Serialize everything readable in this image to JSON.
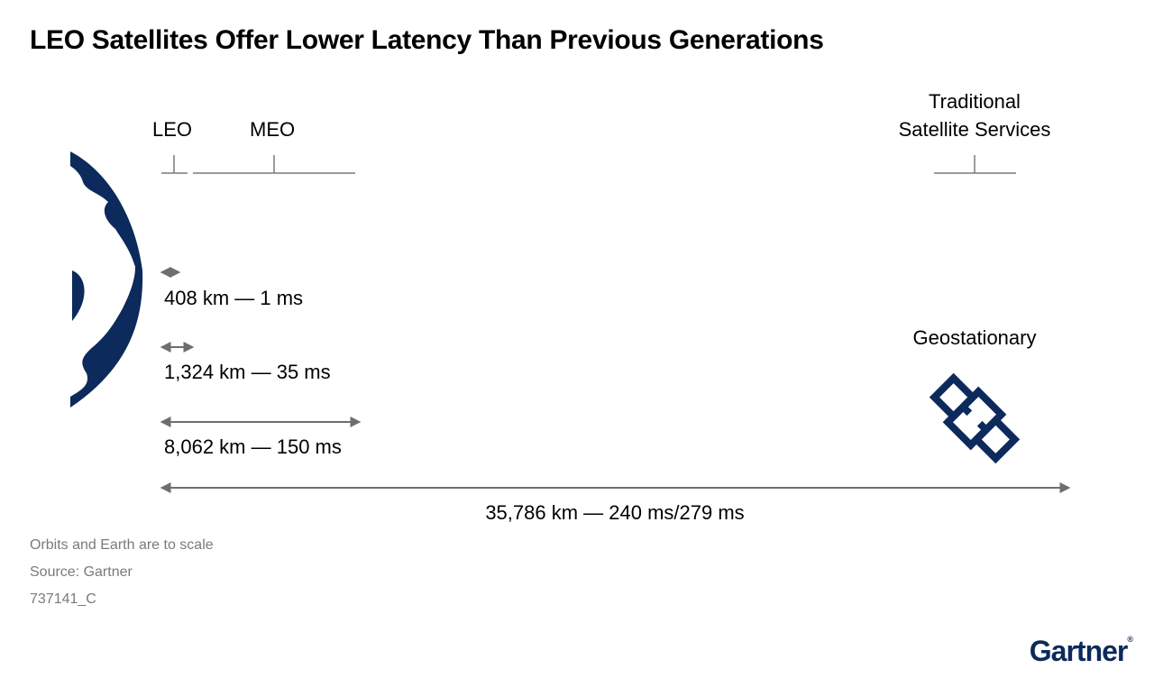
{
  "title": "LEO Satellites Offer Lower Latency Than Previous Generations",
  "orbit_labels": {
    "leo": "LEO",
    "meo": "MEO",
    "traditional_line1": "Traditional",
    "traditional_line2": "Satellite Services"
  },
  "distances": [
    {
      "text": "408 km — 1 ms",
      "km": 408,
      "ms": 1
    },
    {
      "text": "1,324 km — 35 ms",
      "km": 1324,
      "ms": 35
    },
    {
      "text": "8,062 km — 150 ms",
      "km": 8062,
      "ms": 150
    },
    {
      "text": "35,786 km — 240 ms/279 ms",
      "km": 35786,
      "ms": "240/279"
    }
  ],
  "geo_label": "Geostationary",
  "footer": {
    "note": "Orbits and Earth are to scale",
    "source": "Source: Gartner",
    "id": "737141_C"
  },
  "brand": {
    "name": "Gartner",
    "mark": "®"
  },
  "colors": {
    "navy": "#0c2a5b",
    "gray": "#7a7a7a",
    "arrow": "#6e6e6e"
  },
  "icons": [
    "earth-icon",
    "satellite-icon"
  ]
}
